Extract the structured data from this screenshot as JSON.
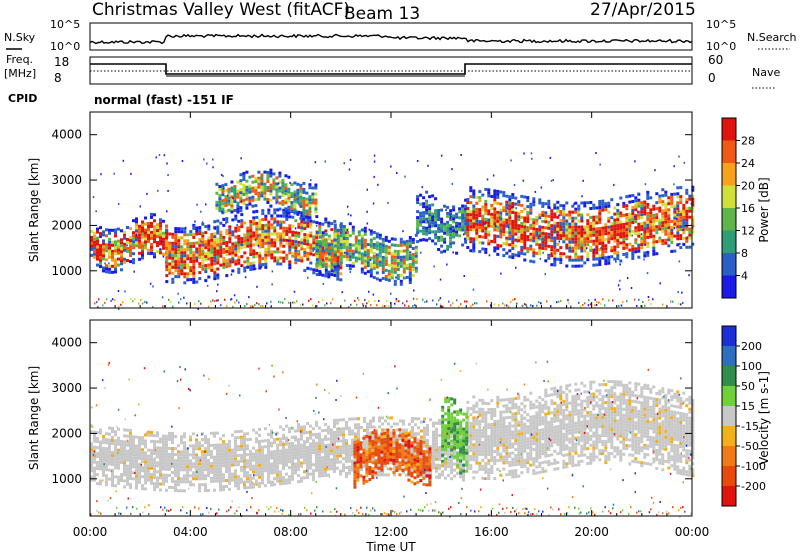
{
  "header": {
    "title": "Christmas Valley West (fitACF)",
    "beam": "Beam 13",
    "date": "27/Apr/2015"
  },
  "strip_labels": {
    "nsky": "N.Sky",
    "nsky_hi": "10^5",
    "nsky_lo": "10^0",
    "nsearch": "N.Search",
    "nsearch_hi": "10^5",
    "nsearch_lo": "10^0",
    "freq_line1": "Freq.",
    "freq_line2": "[MHz]",
    "freq_hi": "18",
    "freq_lo": "8",
    "nave": "Nave",
    "nave_hi": "60",
    "nave_lo": "0",
    "cpid": "CPID",
    "mode": "normal (fast) -151 IF"
  },
  "chart_data": [
    {
      "type": "heatmap",
      "name": "power",
      "xlabel": "",
      "ylabel": "Slant Range [km]",
      "x_ticks": [
        "00:00",
        "04:00",
        "08:00",
        "12:00",
        "16:00",
        "20:00",
        "00:00"
      ],
      "y_ticks": [
        1000,
        2000,
        3000,
        4000
      ],
      "xlim_hours": [
        0,
        24
      ],
      "ylim_km": [
        180,
        4500
      ],
      "colorbar": {
        "label": "Power [dB]",
        "ticks": [
          4,
          8,
          12,
          16,
          20,
          24,
          28
        ],
        "colors": [
          "#1a1ae6",
          "#2a5fc8",
          "#2f9e78",
          "#5fb44a",
          "#cfe03a",
          "#f7a21a",
          "#ef5a14",
          "#e0140e"
        ]
      },
      "bands": [
        {
          "t": [
            0,
            3
          ],
          "r": [
            1150,
            2100
          ],
          "level": "strong"
        },
        {
          "t": [
            3,
            10
          ],
          "r": [
            900,
            2200
          ],
          "level": "strong"
        },
        {
          "t": [
            5,
            9
          ],
          "r": [
            2300,
            3100
          ],
          "level": "medium"
        },
        {
          "t": [
            9,
            13
          ],
          "r": [
            900,
            1900
          ],
          "level": "medium"
        },
        {
          "t": [
            13,
            15
          ],
          "r": [
            1500,
            2600
          ],
          "level": "weak"
        },
        {
          "t": [
            15,
            24
          ],
          "r": [
            1300,
            2700
          ],
          "level": "strong"
        }
      ]
    },
    {
      "type": "heatmap",
      "name": "velocity",
      "xlabel": "Time UT",
      "ylabel": "Slant Range [km]",
      "x_ticks": [
        "00:00",
        "04:00",
        "08:00",
        "12:00",
        "16:00",
        "20:00",
        "00:00"
      ],
      "y_ticks": [
        1000,
        2000,
        3000,
        4000
      ],
      "xlim_hours": [
        0,
        24
      ],
      "ylim_km": [
        180,
        4500
      ],
      "colorbar": {
        "label": "Velocity [m s-1]",
        "ticks": [
          200,
          100,
          50,
          15,
          -15,
          -50,
          -100,
          -200
        ],
        "colors": [
          "#1a2fd6",
          "#2e6ebe",
          "#2f8e4a",
          "#6fd03a",
          "#c8c8c8",
          "#f3b01a",
          "#f07a14",
          "#e84a0e",
          "#e0140e"
        ]
      },
      "bands": [
        {
          "t": [
            0,
            15
          ],
          "r": [
            900,
            2200
          ],
          "level": "ground-scatter"
        },
        {
          "t": [
            15,
            24
          ],
          "r": [
            1200,
            3000
          ],
          "level": "ground-scatter"
        },
        {
          "t": [
            10.5,
            13.5
          ],
          "r": [
            1000,
            2000
          ],
          "level": "negative"
        },
        {
          "t": [
            14,
            15
          ],
          "r": [
            1300,
            2700
          ],
          "level": "positive"
        }
      ]
    }
  ]
}
